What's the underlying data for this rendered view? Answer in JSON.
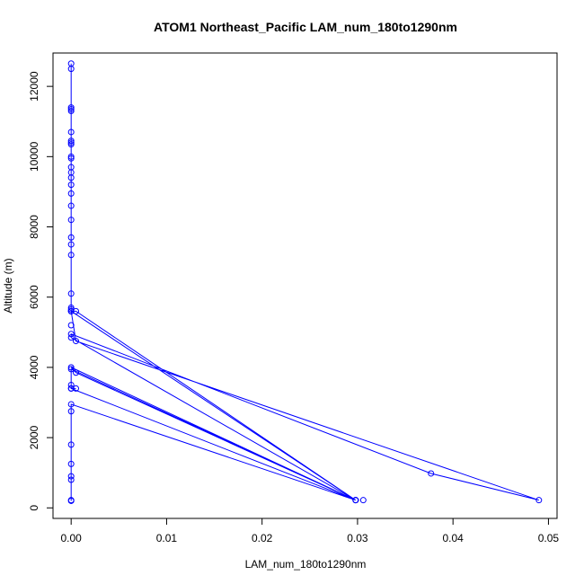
{
  "chart_data": {
    "type": "line",
    "title": "ATOM1 Northeast_Pacific LAM_num_180to1290nm",
    "xlabel": "LAM_num_180to1290nm",
    "ylabel": "Altitude (m)",
    "xlim": [
      -0.0019,
      0.0509
    ],
    "ylim": [
      -300,
      12950
    ],
    "x_ticks": [
      0,
      0.01,
      0.02,
      0.03,
      0.04,
      0.05
    ],
    "x_tick_labels": [
      "0.00",
      "0.01",
      "0.02",
      "0.03",
      "0.04",
      "0.05"
    ],
    "y_ticks": [
      0,
      2000,
      4000,
      6000,
      8000,
      10000,
      12000
    ],
    "y_tick_labels": [
      "0",
      "2000",
      "4000",
      "6000",
      "8000",
      "10000",
      "12000"
    ],
    "grid": false,
    "colors": {
      "series": "#0000ff",
      "axis": "#000000"
    },
    "series": [
      {
        "marker": "open-circle",
        "x": [
          0,
          0,
          0,
          0,
          0,
          0,
          0,
          0,
          0,
          0,
          0,
          0,
          0,
          0,
          0,
          0,
          0,
          0,
          0,
          0,
          0,
          0,
          0,
          0,
          0,
          0,
          0.0005,
          0.0298,
          0,
          0.0005,
          0.049,
          0.0377,
          0,
          0,
          0.0298,
          0,
          0.0005,
          0.0298,
          0,
          0,
          0,
          0.0005,
          0,
          0.0298,
          0,
          0,
          0,
          0,
          0
        ],
        "y": [
          12500,
          12650,
          11350,
          11400,
          11300,
          10700,
          10450,
          10400,
          10350,
          10000,
          9950,
          9700,
          9550,
          9400,
          9200,
          8950,
          8600,
          8200,
          7700,
          7500,
          7200,
          6100,
          5700,
          5650,
          5600,
          5600,
          5600,
          220,
          5600,
          4750,
          220,
          980,
          4950,
          4850,
          220,
          4000,
          3850,
          220,
          3950,
          3500,
          3400,
          3400,
          3400,
          220,
          2950,
          1800,
          1250,
          900,
          200
        ]
      }
    ],
    "extra_points": [
      {
        "x": 0.0306,
        "y": 220
      },
      {
        "x": 0,
        "y": 5200
      },
      {
        "x": 0,
        "y": 2750
      },
      {
        "x": 0,
        "y": 800
      },
      {
        "x": 0,
        "y": 220
      }
    ]
  }
}
